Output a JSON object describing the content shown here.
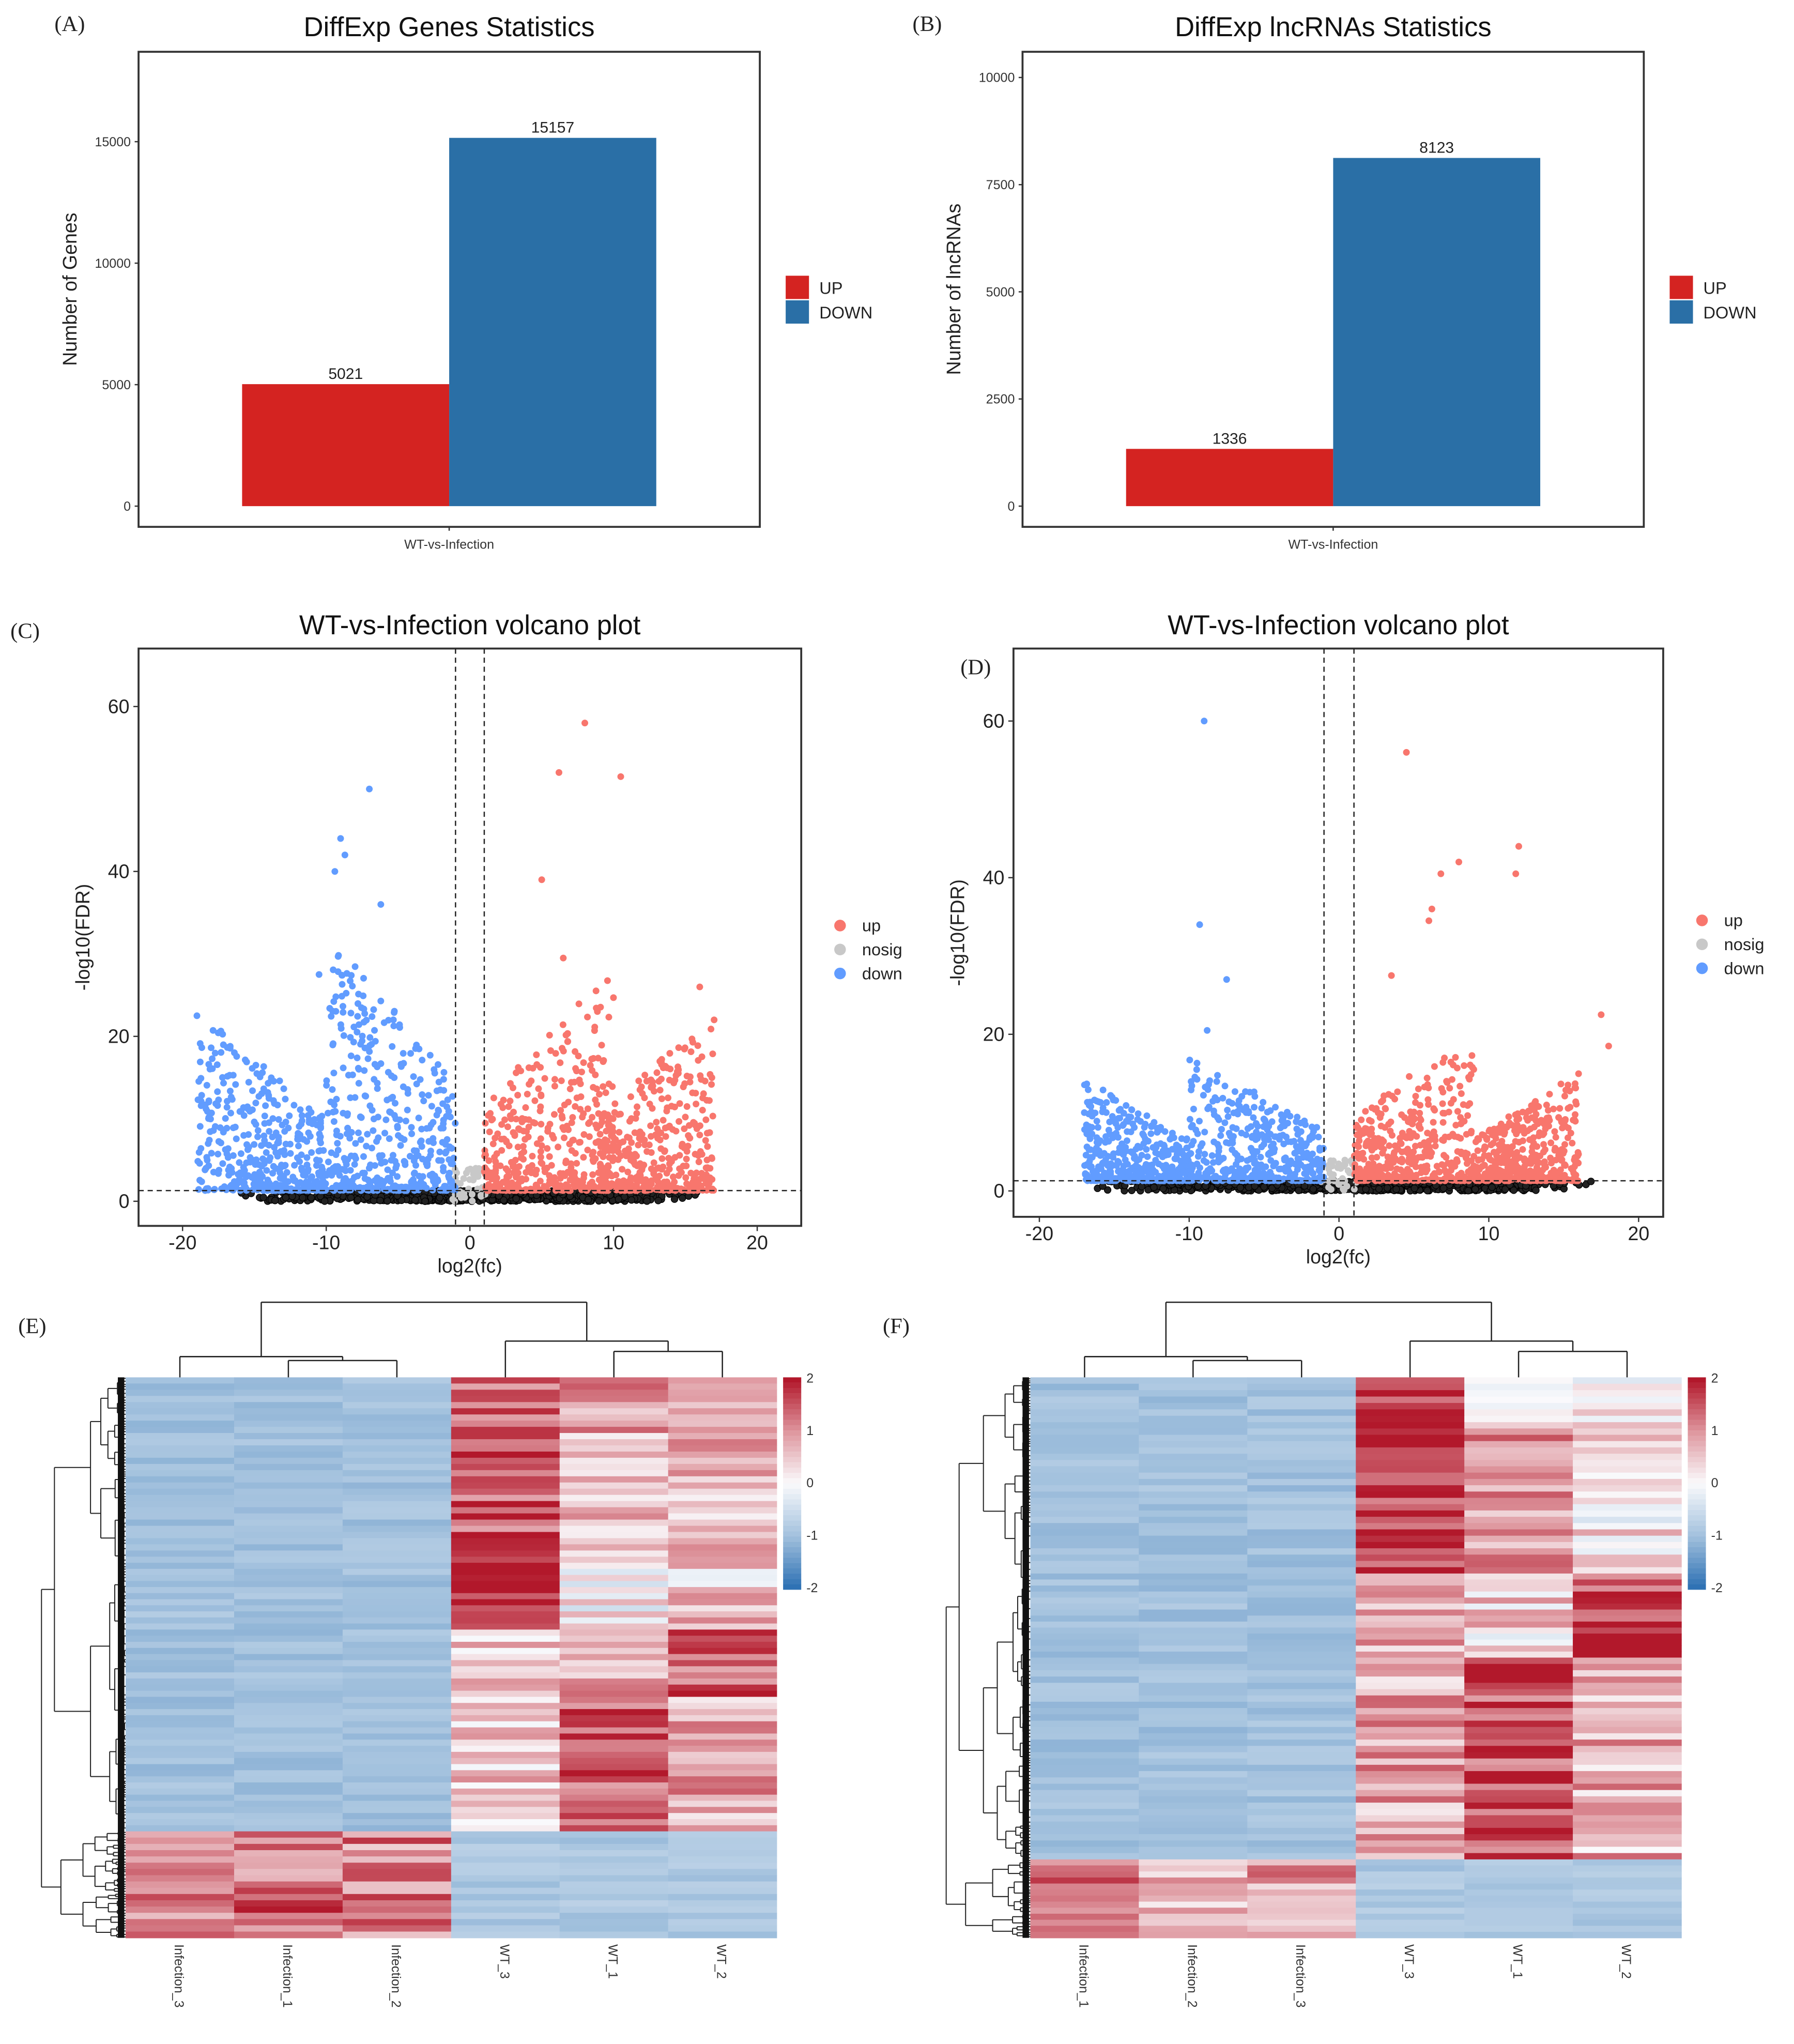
{
  "chart_data": [
    {
      "panel": "(A)",
      "type": "bar",
      "title": "DiffExp Genes Statistics",
      "xlabel": "",
      "ylabel": "Number of Genes",
      "categories": [
        "WT-vs-Infection"
      ],
      "series": [
        {
          "name": "UP",
          "values": [
            5021
          ],
          "color": "#d42321"
        },
        {
          "name": "DOWN",
          "values": [
            15157
          ],
          "color": "#2a6fa6"
        }
      ],
      "data_labels": [
        "5021",
        "15157"
      ],
      "yticks": [
        0,
        5000,
        10000,
        15000
      ],
      "ylim": [
        0,
        18700
      ],
      "legend": "right"
    },
    {
      "panel": "(B)",
      "type": "bar",
      "title": "DiffExp lncRNAs Statistics",
      "xlabel": "",
      "ylabel": "Number of lncRNAs",
      "categories": [
        "WT-vs-Infection"
      ],
      "series": [
        {
          "name": "UP",
          "values": [
            1336
          ],
          "color": "#d42321"
        },
        {
          "name": "DOWN",
          "values": [
            8123
          ],
          "color": "#2a6fa6"
        }
      ],
      "data_labels": [
        "1336",
        "8123"
      ],
      "yticks": [
        0,
        2500,
        5000,
        7500,
        10000
      ],
      "ylim": [
        0,
        10600
      ],
      "legend": "right"
    },
    {
      "panel": "(C)",
      "type": "scatter",
      "title": "WT-vs-Infection volcano plot",
      "xlabel": "log2(fc)",
      "ylabel": "-log10(FDR)",
      "xticks": [
        -20,
        -10,
        0,
        10,
        20
      ],
      "yticks": [
        0,
        20,
        40,
        60
      ],
      "xlim": [
        -23,
        23
      ],
      "ylim": [
        -3,
        67
      ],
      "thresholds": {
        "log2fc": [
          -1,
          1
        ],
        "neg_log10_fdr": 1.3
      },
      "legend": "right",
      "series": [
        {
          "name": "up",
          "color": "#f8766d",
          "clusters": [
            {
              "x": [
                1,
                10
              ],
              "ymax": 27
            },
            {
              "x": [
                9,
                17
              ],
              "ymax": 22
            }
          ],
          "outliers": [
            [
              8,
              58
            ],
            [
              6.2,
              52
            ],
            [
              10.5,
              51.5
            ],
            [
              5,
              39
            ],
            [
              6.5,
              29.5
            ],
            [
              16,
              26
            ],
            [
              17,
              22
            ]
          ]
        },
        {
          "name": "nosig",
          "color": "#c8c8c8",
          "clusters": [
            {
              "x": [
                -17,
                17
              ],
              "ymax": 1.3
            }
          ],
          "outliers": []
        },
        {
          "name": "down",
          "color": "#619cff",
          "clusters": [
            {
              "x": [
                -19,
                -10
              ],
              "ymax": 22
            },
            {
              "x": [
                -10,
                -1
              ],
              "ymax": 32
            }
          ],
          "outliers": [
            [
              -7,
              50
            ],
            [
              -9,
              44
            ],
            [
              -8.7,
              42
            ],
            [
              -9.4,
              40
            ],
            [
              -6.2,
              36
            ],
            [
              -10.5,
              27.5
            ],
            [
              -19,
              22.5
            ]
          ]
        }
      ]
    },
    {
      "panel": "(D)",
      "type": "scatter",
      "title": "WT-vs-Infection volcano plot",
      "xlabel": "log2(fc)",
      "ylabel": "-log10(FDR)",
      "xticks": [
        -20,
        -10,
        0,
        10,
        20
      ],
      "yticks": [
        0,
        20,
        40,
        60
      ],
      "xlim": [
        -23,
        21.5
      ],
      "ylim": [
        -3.3,
        69
      ],
      "thresholds": {
        "log2fc": [
          -1,
          1
        ],
        "neg_log10_fdr": 1.3
      },
      "legend": "right",
      "series": [
        {
          "name": "up",
          "color": "#f8766d",
          "clusters": [
            {
              "x": [
                1,
                9
              ],
              "ymax": 20
            },
            {
              "x": [
                9,
                16
              ],
              "ymax": 14
            }
          ],
          "outliers": [
            [
              4.5,
              56
            ],
            [
              12,
              44
            ],
            [
              8,
              42
            ],
            [
              11.8,
              40.5
            ],
            [
              6.8,
              40.5
            ],
            [
              6.2,
              36
            ],
            [
              6,
              34.5
            ],
            [
              3.5,
              27.5
            ],
            [
              17.5,
              22.5
            ],
            [
              18,
              18.5
            ]
          ]
        },
        {
          "name": "nosig",
          "color": "#c8c8c8",
          "clusters": [
            {
              "x": [
                -17,
                17
              ],
              "ymax": 1.3
            }
          ],
          "outliers": []
        },
        {
          "name": "down",
          "color": "#619cff",
          "clusters": [
            {
              "x": [
                -17,
                -10
              ],
              "ymax": 13
            },
            {
              "x": [
                -10,
                -1
              ],
              "ymax": 16
            }
          ],
          "outliers": [
            [
              -9,
              60
            ],
            [
              -9.3,
              34
            ],
            [
              -7.5,
              27
            ],
            [
              -8.8,
              20.5
            ],
            [
              -9.5,
              15.5
            ],
            [
              -17,
              10
            ]
          ]
        }
      ]
    },
    {
      "panel": "(E)",
      "type": "heatmap",
      "columns": [
        "Infection_3",
        "Infection_1",
        "Infection_2",
        "WT_3",
        "WT_1",
        "WT_2"
      ],
      "colorbar": {
        "ticks": [
          "2",
          "1",
          "0",
          "-1",
          "-2"
        ],
        "low": "#2f72b4",
        "mid": "#ffffff",
        "high": "#b2182b",
        "range": [
          -2,
          2
        ]
      },
      "row_blocks": [
        {
          "share": 0.32,
          "z": [
            -1,
            -1,
            -1,
            1.4,
            0.8,
            0.7
          ]
        },
        {
          "share": 0.13,
          "z": [
            -1,
            -1,
            -1,
            1.9,
            0.2,
            0.5
          ]
        },
        {
          "share": 0.12,
          "z": [
            -1,
            -1,
            -1,
            0.4,
            0.8,
            1.5
          ]
        },
        {
          "share": 0.24,
          "z": [
            -1,
            -1,
            -1,
            0.6,
            1.5,
            0.8
          ]
        },
        {
          "share": 0.19,
          "z": [
            1.1,
            1.3,
            1.1,
            -0.9,
            -0.9,
            -0.9
          ]
        }
      ]
    },
    {
      "panel": "(F)",
      "type": "heatmap",
      "columns": [
        "Infection_1",
        "Infection_2",
        "Infection_3",
        "WT_3",
        "WT_1",
        "WT_2"
      ],
      "colorbar": {
        "ticks": [
          "2",
          "1",
          "0",
          "-1",
          "-2"
        ],
        "low": "#2f72b4",
        "mid": "#ffffff",
        "high": "#b2182b",
        "range": [
          -2,
          2
        ]
      },
      "row_blocks": [
        {
          "share": 0.08,
          "z": [
            -1,
            -1,
            -1,
            1.8,
            0.0,
            0.3
          ]
        },
        {
          "share": 0.27,
          "z": [
            -1,
            -1,
            -1,
            1.8,
            0.9,
            0.2
          ]
        },
        {
          "share": 0.15,
          "z": [
            -1,
            -1,
            -1,
            0.9,
            0.4,
            1.6
          ]
        },
        {
          "share": 0.36,
          "z": [
            -1,
            -1,
            -1,
            0.8,
            1.6,
            0.7
          ]
        },
        {
          "share": 0.14,
          "z": [
            1.5,
            0.8,
            0.8,
            -0.9,
            -0.9,
            -0.9
          ]
        }
      ]
    }
  ]
}
